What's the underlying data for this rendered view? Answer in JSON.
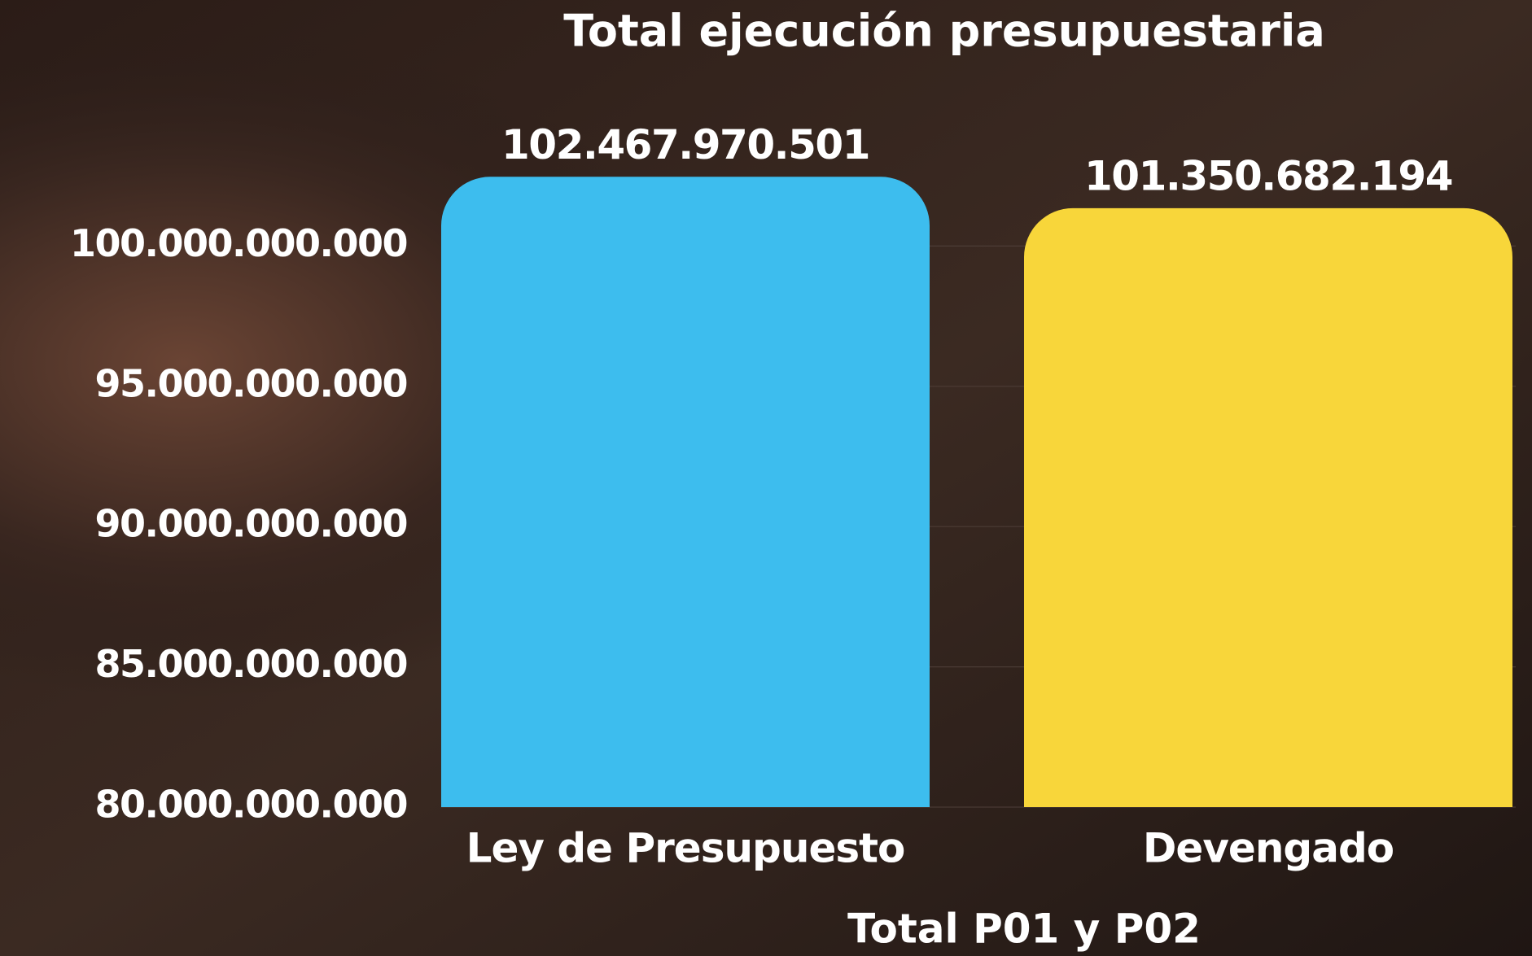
{
  "chart_data": {
    "type": "bar",
    "title": "Total ejecución presupuestaria",
    "x_label": "Total P01 y P02",
    "categories": [
      "Ley de Presupuesto",
      "Devengado"
    ],
    "values": [
      102467970501,
      101350682194
    ],
    "value_labels": [
      "102.467.970.501",
      "101.350.682.194"
    ],
    "colors": [
      "#3dbdee",
      "#f8d63a"
    ],
    "ylim": [
      80000000000,
      105000000000
    ],
    "yticks": [
      {
        "value": 80000000000,
        "label": "80.000.000.000"
      },
      {
        "value": 85000000000,
        "label": "85.000.000.000"
      },
      {
        "value": 90000000000,
        "label": "90.000.000.000"
      },
      {
        "value": 95000000000,
        "label": "95.000.000.000"
      },
      {
        "value": 100000000000,
        "label": "100.000.000.000"
      }
    ],
    "grid": true
  }
}
